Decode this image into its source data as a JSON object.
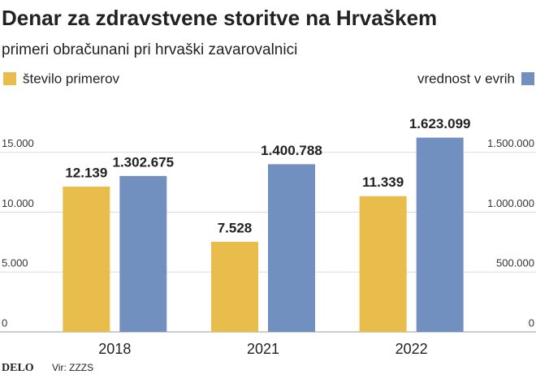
{
  "chart_data": {
    "type": "bar",
    "title": "Denar za zdravstvene storitve na Hrvaškem",
    "subtitle": "primeri obračunani pri hrvaški zavarovalnici",
    "categories": [
      "2018",
      "2021",
      "2022"
    ],
    "series": [
      {
        "name": "število primerov",
        "color": "#e8bd4b",
        "values": [
          12139,
          7528,
          11339
        ],
        "value_labels": [
          "12.139",
          "7.528",
          "11.339"
        ]
      },
      {
        "name": "vrednost v evrih",
        "color": "#7290bf",
        "axis": "y2",
        "values": [
          1302675,
          1400788,
          1623099
        ],
        "value_labels": [
          "1.302.675",
          "1.400.788",
          "1.623.099"
        ]
      }
    ],
    "ylim": [
      0,
      18000
    ],
    "yticks": [
      0,
      {
        "value": 5000,
        "label": "5.000"
      },
      {
        "value": 10000,
        "label": "10.000"
      },
      {
        "value": 15000,
        "label": "15.000"
      }
    ],
    "y2lim": [
      0,
      1800000
    ],
    "y2ticks": [
      0,
      {
        "value": 500000,
        "label": "500.000"
      },
      {
        "value": 1000000,
        "label": "1.000.000"
      },
      {
        "value": 1500000,
        "label": "1.500.000"
      }
    ],
    "grid": true,
    "logo": "DELO",
    "source": "Vir: ZZZS"
  }
}
